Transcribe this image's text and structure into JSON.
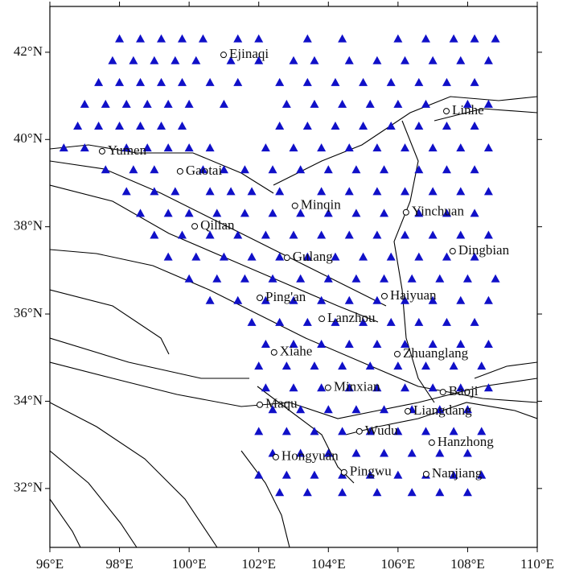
{
  "map": {
    "xlim": [
      96,
      110
    ],
    "ylim": [
      30.65,
      43.05
    ],
    "xticks": [
      {
        "value": 96,
        "label": "96°E"
      },
      {
        "value": 98,
        "label": "98°E"
      },
      {
        "value": 100,
        "label": "100°E"
      },
      {
        "value": 102,
        "label": "102°E"
      },
      {
        "value": 104,
        "label": "104°E"
      },
      {
        "value": 106,
        "label": "106°E"
      },
      {
        "value": 108,
        "label": "108°E"
      },
      {
        "value": 110,
        "label": "110°E"
      }
    ],
    "yticks": [
      {
        "value": 32,
        "label": "32°N"
      },
      {
        "value": 34,
        "label": "34°N"
      },
      {
        "value": 36,
        "label": "36°N"
      },
      {
        "value": 38,
        "label": "38°N"
      },
      {
        "value": 40,
        "label": "40°N"
      },
      {
        "value": 42,
        "label": "42°N"
      }
    ],
    "station_color": "#1010c8",
    "cities": [
      {
        "name": "Ejinaqi",
        "lon": 100.99,
        "lat": 41.94
      },
      {
        "name": "Linhe",
        "lon": 107.39,
        "lat": 40.65
      },
      {
        "name": "Yumen",
        "lon": 97.5,
        "lat": 39.73
      },
      {
        "name": "Gaotai",
        "lon": 99.74,
        "lat": 39.27
      },
      {
        "name": "Minqin",
        "lon": 103.04,
        "lat": 38.48
      },
      {
        "name": "Yinchuan",
        "lon": 106.23,
        "lat": 38.33
      },
      {
        "name": "Qilian",
        "lon": 100.16,
        "lat": 38.01
      },
      {
        "name": "Dingbian",
        "lon": 107.57,
        "lat": 37.44
      },
      {
        "name": "Gulang",
        "lon": 102.81,
        "lat": 37.29
      },
      {
        "name": "Ping'an",
        "lon": 102.03,
        "lat": 36.37
      },
      {
        "name": "Haiyuan",
        "lon": 105.61,
        "lat": 36.41
      },
      {
        "name": "Lanzhou",
        "lon": 103.81,
        "lat": 35.89
      },
      {
        "name": "Xiahe",
        "lon": 102.44,
        "lat": 35.12
      },
      {
        "name": "Zhuanglang",
        "lon": 105.98,
        "lat": 35.08
      },
      {
        "name": "Minxian",
        "lon": 103.99,
        "lat": 34.31
      },
      {
        "name": "Baoji",
        "lon": 107.29,
        "lat": 34.21
      },
      {
        "name": "Maqu",
        "lon": 102.03,
        "lat": 33.92
      },
      {
        "name": "Liangdang",
        "lon": 106.28,
        "lat": 33.77
      },
      {
        "name": "Wudu",
        "lon": 104.89,
        "lat": 33.31
      },
      {
        "name": "Hanzhong",
        "lon": 106.97,
        "lat": 33.05
      },
      {
        "name": "Hongyuan",
        "lon": 102.49,
        "lat": 32.72
      },
      {
        "name": "Pingwu",
        "lon": 104.45,
        "lat": 32.37
      },
      {
        "name": "Nanjiang",
        "lon": 106.81,
        "lat": 32.33
      }
    ],
    "stations": [
      {
        "lat": 42.3,
        "lon": [
          98.0,
          98.6,
          99.2,
          99.8,
          100.4,
          101.4,
          102.0,
          103.4,
          104.4,
          106.0,
          106.8,
          107.6,
          108.2,
          108.8
        ]
      },
      {
        "lat": 41.8,
        "lon": [
          97.8,
          98.4,
          99.0,
          99.6,
          100.2,
          101.2,
          102.0,
          103.0,
          103.6,
          104.6,
          105.4,
          106.2,
          107.0,
          107.8,
          108.6
        ]
      },
      {
        "lat": 41.3,
        "lon": [
          97.4,
          98.0,
          98.6,
          99.2,
          99.8,
          100.6,
          101.4,
          102.6,
          103.4,
          104.2,
          105.0,
          105.8,
          106.6,
          107.4,
          108.2
        ]
      },
      {
        "lat": 40.8,
        "lon": [
          97.0,
          97.6,
          98.2,
          98.8,
          99.4,
          100.0,
          101.0,
          102.8,
          103.6,
          104.4,
          105.2,
          106.0,
          106.8,
          108.0,
          108.6
        ]
      },
      {
        "lat": 40.3,
        "lon": [
          96.8,
          97.4,
          98.0,
          98.6,
          99.2,
          99.8,
          102.6,
          103.4,
          104.2,
          105.0,
          105.8,
          106.6,
          107.4,
          108.2
        ]
      },
      {
        "lat": 39.8,
        "lon": [
          96.4,
          97.0,
          98.2,
          98.8,
          99.4,
          100.0,
          100.6,
          102.2,
          103.0,
          103.8,
          104.6,
          105.4,
          106.2,
          107.0,
          107.8,
          108.6
        ]
      },
      {
        "lat": 39.3,
        "lon": [
          97.6,
          98.4,
          99.0,
          100.4,
          101.0,
          101.6,
          102.4,
          103.2,
          104.0,
          104.8,
          105.6,
          106.6,
          107.4,
          108.2
        ]
      },
      {
        "lat": 38.8,
        "lon": [
          98.2,
          99.0,
          99.6,
          100.6,
          101.2,
          101.8,
          102.6,
          103.8,
          104.6,
          105.4,
          106.2,
          107.0,
          107.8,
          108.6
        ]
      },
      {
        "lat": 38.3,
        "lon": [
          98.6,
          99.4,
          100.0,
          100.8,
          101.6,
          102.4,
          103.2,
          104.0,
          104.8,
          105.6,
          106.6,
          107.4,
          108.2
        ]
      },
      {
        "lat": 37.8,
        "lon": [
          99.0,
          99.8,
          100.6,
          101.4,
          102.2,
          103.0,
          103.8,
          104.6,
          105.4,
          106.2,
          107.0,
          107.8,
          108.6
        ]
      },
      {
        "lat": 37.3,
        "lon": [
          99.4,
          100.2,
          101.0,
          101.8,
          102.6,
          103.4,
          104.2,
          105.0,
          105.8,
          106.6,
          107.4,
          108.2
        ]
      },
      {
        "lat": 36.8,
        "lon": [
          100.0,
          100.8,
          101.6,
          102.4,
          103.2,
          104.0,
          104.8,
          105.6,
          106.4,
          107.2,
          108.0,
          108.8
        ]
      },
      {
        "lat": 36.3,
        "lon": [
          100.6,
          101.4,
          102.2,
          103.0,
          103.8,
          104.6,
          105.4,
          106.2,
          107.0,
          107.8,
          108.6
        ]
      },
      {
        "lat": 35.8,
        "lon": [
          101.8,
          102.6,
          103.4,
          104.2,
          105.0,
          105.8,
          106.6,
          107.4,
          108.2
        ]
      },
      {
        "lat": 35.3,
        "lon": [
          102.2,
          103.0,
          103.8,
          104.6,
          105.4,
          106.2,
          107.0,
          107.8,
          108.6
        ]
      },
      {
        "lat": 34.8,
        "lon": [
          102.0,
          102.8,
          103.6,
          104.4,
          105.2,
          106.0,
          106.8,
          107.6,
          108.4
        ]
      },
      {
        "lat": 34.3,
        "lon": [
          102.2,
          103.0,
          103.8,
          104.6,
          105.4,
          106.2,
          107.0,
          107.8,
          108.6
        ]
      },
      {
        "lat": 33.8,
        "lon": [
          102.4,
          103.2,
          104.0,
          104.8,
          105.6,
          106.4,
          107.2,
          108.0
        ]
      },
      {
        "lat": 33.3,
        "lon": [
          102.0,
          102.8,
          103.6,
          104.4,
          105.2,
          106.0,
          106.8,
          107.6,
          108.4
        ]
      },
      {
        "lat": 32.8,
        "lon": [
          102.4,
          103.2,
          104.0,
          104.8,
          105.6,
          106.4,
          107.2,
          108.0
        ]
      },
      {
        "lat": 32.3,
        "lon": [
          102.0,
          102.8,
          103.6,
          104.4,
          105.2,
          106.0,
          106.8,
          107.6,
          108.4
        ]
      },
      {
        "lat": 31.9,
        "lon": [
          102.6,
          103.4,
          104.4,
          105.4,
          106.4,
          107.2,
          108.0
        ]
      }
    ]
  }
}
